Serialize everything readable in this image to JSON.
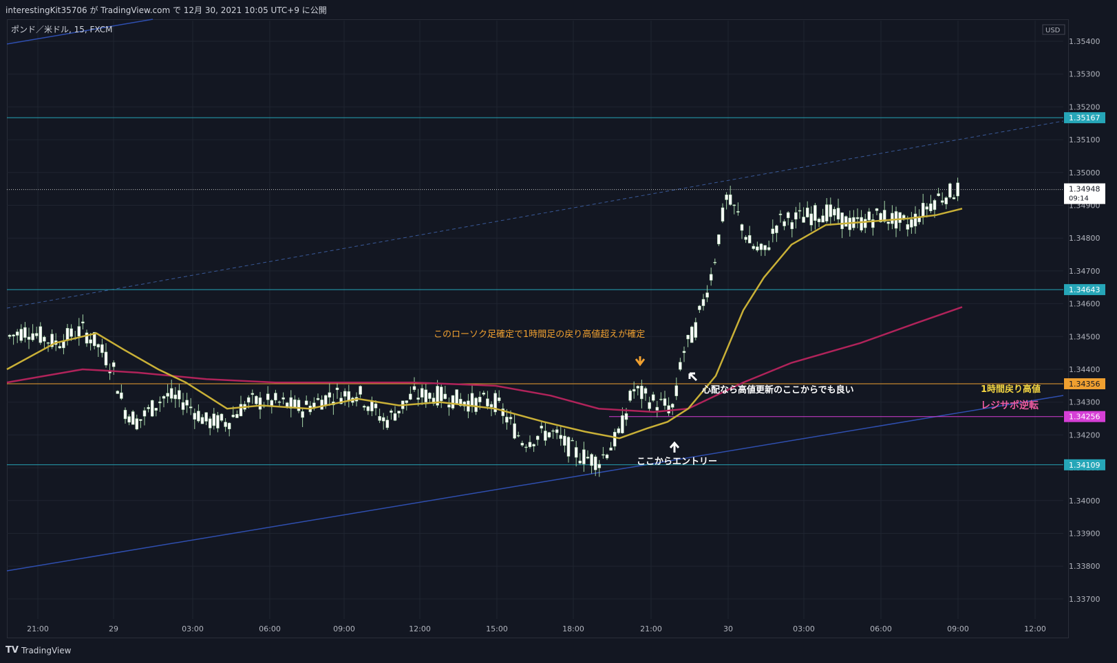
{
  "header": {
    "publish_text": "interestingKit35706 が TradingView.com で 12月 30, 2021 10:05 UTC+9 に公開"
  },
  "symbol": {
    "label": "ポンド／米ドル, 15, FXCM"
  },
  "footer": {
    "brand": "TradingView"
  },
  "chart_data": {
    "type": "candlestick",
    "currency": "USD",
    "ylim": [
      1.3365,
      1.3545
    ],
    "y_ticks": [
      "1.35400",
      "1.35300",
      "1.35200",
      "1.35100",
      "1.35000",
      "1.34900",
      "1.34800",
      "1.34700",
      "1.34600",
      "1.34500",
      "1.34400",
      "1.34300",
      "1.34200",
      "1.34100",
      "1.34000",
      "1.33900",
      "1.33800",
      "1.33700"
    ],
    "x_ticks": [
      "21:00",
      "29",
      "03:00",
      "06:00",
      "09:00",
      "12:00",
      "15:00",
      "18:00",
      "21:00",
      "30",
      "03:00",
      "06:00",
      "09:00",
      "12:00"
    ],
    "last_price": {
      "value": "1.34948",
      "countdown": "09:14"
    },
    "levels": [
      {
        "value": 1.35167,
        "label": "1.35167",
        "color": "#26a6b8"
      },
      {
        "value": 1.34643,
        "label": "1.34643",
        "color": "#26a6b8"
      },
      {
        "value": 1.34356,
        "label": "1.34356",
        "color": "#f0a030"
      },
      {
        "value": 1.34256,
        "label": "1.34256",
        "color": "#d63fd6"
      },
      {
        "value": 1.34109,
        "label": "1.34109",
        "color": "#26a6b8"
      }
    ],
    "annotations": {
      "confirm": "このローソク足確定で1時間足の戻り高値超えが確定",
      "worry": "心配なら高値更新のここからでも良い",
      "entry": "ここからエントリー",
      "hour_high": "1時間戻り高値",
      "resi_sup": "レジサポ逆転"
    },
    "colors": {
      "up": "#ffffff",
      "down": "#ffffff",
      "wick": "#a5d6a7",
      "ma_fast": "#c9b037",
      "ma_slow": "#b0235a",
      "trend": "#2f4fb0",
      "dashed": "#3a5a9a"
    }
  }
}
